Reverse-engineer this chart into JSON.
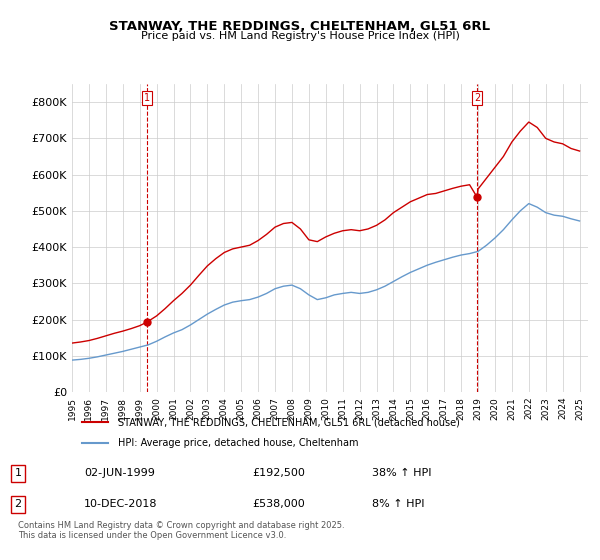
{
  "title": "STANWAY, THE REDDINGS, CHELTENHAM, GL51 6RL",
  "subtitle": "Price paid vs. HM Land Registry's House Price Index (HPI)",
  "legend_line1": "STANWAY, THE REDDINGS, CHELTENHAM, GL51 6RL (detached house)",
  "legend_line2": "HPI: Average price, detached house, Cheltenham",
  "annotation1_label": "1",
  "annotation1_date": "02-JUN-1999",
  "annotation1_price": "£192,500",
  "annotation1_hpi": "38% ↑ HPI",
  "annotation2_label": "2",
  "annotation2_date": "10-DEC-2018",
  "annotation2_price": "£538,000",
  "annotation2_hpi": "8% ↑ HPI",
  "footer": "Contains HM Land Registry data © Crown copyright and database right 2025.\nThis data is licensed under the Open Government Licence v3.0.",
  "red_color": "#cc0000",
  "blue_color": "#6699cc",
  "dashed_red": "#cc0000",
  "bg_color": "#ffffff",
  "grid_color": "#cccccc",
  "ylim": [
    0,
    850000
  ],
  "yticks": [
    0,
    100000,
    200000,
    300000,
    400000,
    500000,
    600000,
    700000,
    800000
  ],
  "xlim_start": 1995.0,
  "xlim_end": 2025.5,
  "marker1_x": 1999.42,
  "marker1_y": 192500,
  "marker2_x": 2018.94,
  "marker2_y": 538000,
  "red_x": [
    1995.0,
    1995.5,
    1996.0,
    1996.5,
    1997.0,
    1997.5,
    1998.0,
    1998.5,
    1999.0,
    1999.42,
    1999.5,
    2000.0,
    2000.5,
    2001.0,
    2001.5,
    2002.0,
    2002.5,
    2003.0,
    2003.5,
    2004.0,
    2004.5,
    2005.0,
    2005.5,
    2006.0,
    2006.5,
    2007.0,
    2007.5,
    2008.0,
    2008.5,
    2009.0,
    2009.5,
    2010.0,
    2010.5,
    2011.0,
    2011.5,
    2012.0,
    2012.5,
    2013.0,
    2013.5,
    2014.0,
    2014.5,
    2015.0,
    2015.5,
    2016.0,
    2016.5,
    2017.0,
    2017.5,
    2018.0,
    2018.5,
    2018.94,
    2019.0,
    2019.5,
    2020.0,
    2020.5,
    2021.0,
    2021.5,
    2022.0,
    2022.5,
    2023.0,
    2023.5,
    2024.0,
    2024.5,
    2025.0
  ],
  "red_y": [
    135000,
    138000,
    142000,
    148000,
    155000,
    162000,
    168000,
    175000,
    183000,
    192500,
    195000,
    210000,
    230000,
    252000,
    272000,
    295000,
    322000,
    348000,
    368000,
    385000,
    395000,
    400000,
    405000,
    418000,
    435000,
    455000,
    465000,
    468000,
    450000,
    420000,
    415000,
    428000,
    438000,
    445000,
    448000,
    445000,
    450000,
    460000,
    475000,
    495000,
    510000,
    525000,
    535000,
    545000,
    548000,
    555000,
    562000,
    568000,
    572000,
    538000,
    560000,
    590000,
    620000,
    650000,
    690000,
    720000,
    745000,
    730000,
    700000,
    690000,
    685000,
    672000,
    665000
  ],
  "blue_x": [
    1995.0,
    1995.5,
    1996.0,
    1996.5,
    1997.0,
    1997.5,
    1998.0,
    1998.5,
    1999.0,
    1999.5,
    2000.0,
    2000.5,
    2001.0,
    2001.5,
    2002.0,
    2002.5,
    2003.0,
    2003.5,
    2004.0,
    2004.5,
    2005.0,
    2005.5,
    2006.0,
    2006.5,
    2007.0,
    2007.5,
    2008.0,
    2008.5,
    2009.0,
    2009.5,
    2010.0,
    2010.5,
    2011.0,
    2011.5,
    2012.0,
    2012.5,
    2013.0,
    2013.5,
    2014.0,
    2014.5,
    2015.0,
    2015.5,
    2016.0,
    2016.5,
    2017.0,
    2017.5,
    2018.0,
    2018.5,
    2019.0,
    2019.5,
    2020.0,
    2020.5,
    2021.0,
    2021.5,
    2022.0,
    2022.5,
    2023.0,
    2023.5,
    2024.0,
    2024.5,
    2025.0
  ],
  "blue_y": [
    88000,
    90000,
    93000,
    97000,
    102000,
    107000,
    112000,
    118000,
    124000,
    130000,
    140000,
    152000,
    163000,
    172000,
    185000,
    200000,
    215000,
    228000,
    240000,
    248000,
    252000,
    255000,
    262000,
    272000,
    285000,
    292000,
    295000,
    285000,
    268000,
    255000,
    260000,
    268000,
    272000,
    275000,
    272000,
    275000,
    282000,
    292000,
    305000,
    318000,
    330000,
    340000,
    350000,
    358000,
    365000,
    372000,
    378000,
    382000,
    388000,
    405000,
    425000,
    448000,
    475000,
    500000,
    520000,
    510000,
    495000,
    488000,
    485000,
    478000,
    472000
  ]
}
